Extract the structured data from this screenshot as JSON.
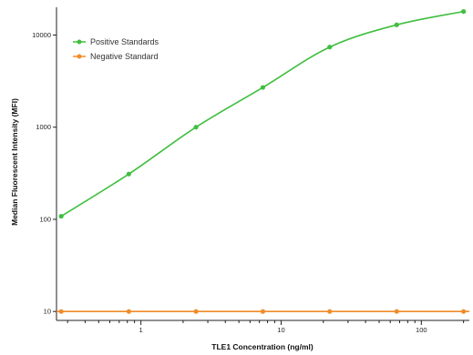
{
  "chart_data": {
    "type": "scatter",
    "xlabel": "TLE1 Concentration (ng/ml)",
    "ylabel": "Median Fluorescent Intensity (MFI)",
    "xscale": "log",
    "yscale": "log",
    "xlim": [
      0.25,
      220
    ],
    "ylim": [
      8,
      20000
    ],
    "x_ticks": [
      1,
      10,
      100
    ],
    "x_tick_labels": [
      "1",
      "10",
      "100"
    ],
    "y_ticks": [
      10,
      100,
      1000,
      10000
    ],
    "y_tick_labels": [
      "10",
      "100",
      "1000",
      "10000"
    ],
    "grid": false,
    "legend_position": "top-left",
    "series": [
      {
        "name": "Positive Standards",
        "color": "#3fbf3f",
        "fit": "sigmoid",
        "x": [
          0.27,
          0.82,
          2.47,
          7.41,
          22.2,
          66.7,
          200
        ],
        "y": [
          108,
          310,
          1000,
          2700,
          7400,
          12900,
          18000
        ]
      },
      {
        "name": "Negative Standard",
        "color": "#f08c2a",
        "fit": "flat",
        "x": [
          0.27,
          0.82,
          2.47,
          7.41,
          22.2,
          66.7,
          200
        ],
        "y": [
          10,
          10,
          10,
          10,
          10,
          10,
          10
        ]
      }
    ]
  }
}
